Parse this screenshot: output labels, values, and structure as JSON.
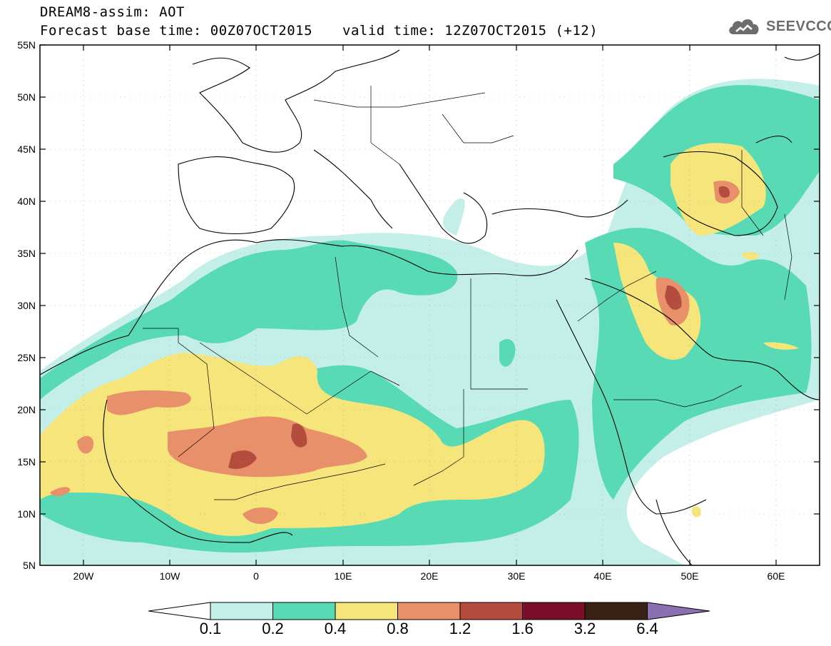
{
  "header": {
    "title_line1": "DREAM8-assim: AOT",
    "title_line2": "Forecast base time: 00Z07OCT2015",
    "valid_time": "valid time: 12Z07OCT2015 (+12)",
    "logo_text": "SEEVCCC"
  },
  "map": {
    "lat_labels": [
      "55N",
      "50N",
      "45N",
      "40N",
      "35N",
      "30N",
      "25N",
      "20N",
      "15N",
      "10N",
      "5N"
    ],
    "lon_labels": [
      "20W",
      "10W",
      "0",
      "10E",
      "20E",
      "30E",
      "40E",
      "50E",
      "60E"
    ]
  },
  "colorbar": {
    "labels": [
      "0.1",
      "0.2",
      "0.4",
      "0.8",
      "1.2",
      "1.6",
      "3.2",
      "6.4"
    ],
    "colors": {
      "below": "#ffffff",
      "c1": "#c4efe8",
      "c2": "#58dbb5",
      "c3": "#f6e57a",
      "c4": "#e8906a",
      "c5": "#b44d3e",
      "c6": "#7b0f2b",
      "c7": "#3a2114",
      "above": "#8a6fb1"
    }
  }
}
